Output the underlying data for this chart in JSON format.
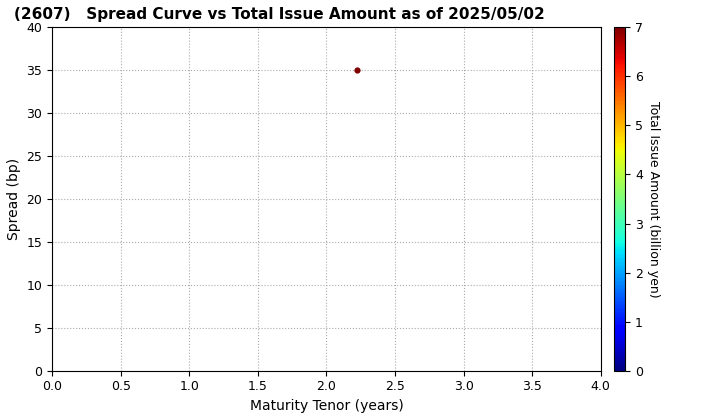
{
  "title": "(2607)   Spread Curve vs Total Issue Amount as of 2025/05/02",
  "xlabel": "Maturity Tenor (years)",
  "ylabel": "Spread (bp)",
  "colorbar_label": "Total Issue Amount (billion yen)",
  "xlim": [
    0.0,
    4.0
  ],
  "ylim": [
    0,
    40
  ],
  "xticks": [
    0.0,
    0.5,
    1.0,
    1.5,
    2.0,
    2.5,
    3.0,
    3.5,
    4.0
  ],
  "yticks": [
    0,
    5,
    10,
    15,
    20,
    25,
    30,
    35,
    40
  ],
  "colorbar_min": 0,
  "colorbar_max": 7,
  "colorbar_ticks": [
    0,
    1,
    2,
    3,
    4,
    5,
    6,
    7
  ],
  "scatter_x": [
    2.22
  ],
  "scatter_y": [
    35.0
  ],
  "scatter_color_value": [
    7.0
  ],
  "scatter_size": 12,
  "background_color": "#ffffff",
  "grid_color": "#aaaaaa",
  "title_fontsize": 11,
  "axis_label_fontsize": 10,
  "tick_fontsize": 9,
  "colorbar_label_fontsize": 9
}
